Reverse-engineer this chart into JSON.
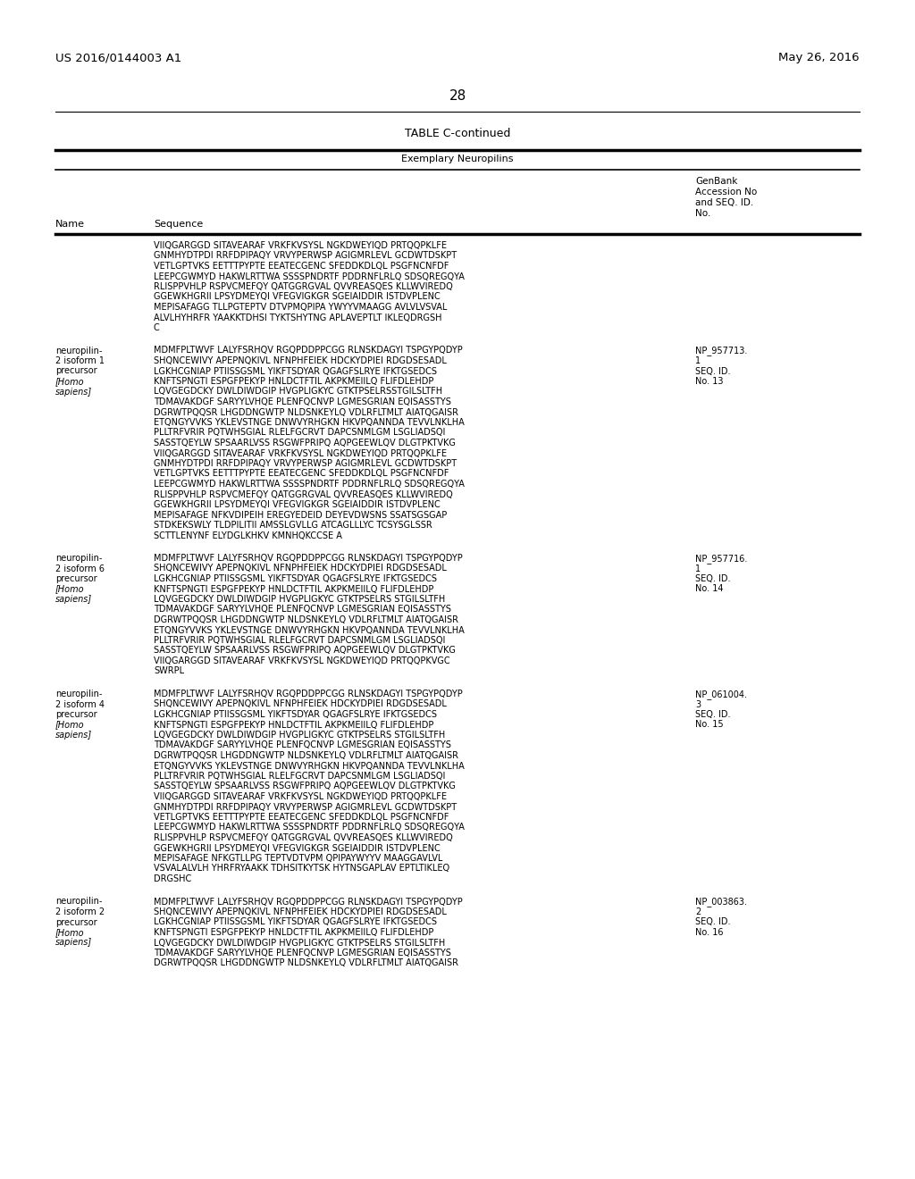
{
  "page_number": "28",
  "top_left": "US 2016/0144003 A1",
  "top_right": "May 26, 2016",
  "table_title": "TABLE C-continued",
  "table_subtitle": "Exemplary Neuropilins",
  "background_color": "#ffffff",
  "content": [
    {
      "name_lines": [],
      "accession_lines": [],
      "sequence_lines": [
        "VIIQGARGGD SITAVEARAF VRKFKVSYSL NGKDWEYIQD PRTQQPKLFE",
        "GNMHYDTPDI RRFDPIPAQY VRVYPERWSP AGIGMRLEVL GCDWTDSKPT",
        "VETLGPTVKS EETTTPYPTE EEATECGENC SFEDDKDLQL PSGFNCNFDF",
        "LEEPCGWMYD HAKWLRTTWA SSSSPNDRTF PDDRNFLRLQ SDSQREGQYA",
        "RLISPPVHLP RSPVCMEFQY QATGGRGVAL QVVREASQES KLLWVIREDQ",
        "GGEWKHGRII LPSYDMEYQI VFEGVIGKGR SGEIAIDDIR ISTDVPLENC",
        "MEPISAFAGG TLLPGTEPTV DTVPMQPIPA YWYYVMAAGG AVLVLVSVAL",
        "ALVLHYHRFR YAAKKTDHSI TYKTSHYTNG APLAVEPTLT IKLEQDRGSH",
        "C"
      ]
    },
    {
      "name_lines": [
        "neuropilin-",
        "2 isoform 1",
        "precursor",
        "[Homo",
        "sapiens]"
      ],
      "italic_indices": [
        3,
        4
      ],
      "accession_lines": [
        "NP_957713.",
        "1",
        "SEQ. ID.",
        "No. 13"
      ],
      "sequence_lines": [
        "MDMFPLTWVF LALYFSRHQV RGQPDDPPCGG RLNSKDAGYI TSPGYPQDYP",
        "SHQNCEWIVY APEPNQKIVL NFNPHFEIEK HDCKYDPIEI RDGDSESADL",
        "LGKHCGNIAP PTIISSGSML YIKFTSDYAR QGAGFSLRYE IFKTGSEDCS",
        "KNFTSPNGTI ESPGFPEKYP HNLDCTFTIL AKPKMEIILQ FLIFDLEHDP",
        "LQVGEGDCKY DWLDIWDGIP HVGPLIGKYC GTKTPSELRSSTGILSLTFH",
        "TDMAVAKDGF SARYYLVHQE PLENFQCNVP LGMESGRIAN EQISASSTYS",
        "DGRWTPQQSR LHGDDNGWTP NLDSNKEYLQ VDLRFLTMLT AIATQGAISR",
        "ETQNGYVVKS YKLEVSTNGE DNWVYRHGKN HKVPQANNDA TEVVLNKLHA",
        "PLLTRFVRIR PQTWHSGIAL RLELFGCRVT DAPCSNMLGM LSGLIADSQI",
        "SASSTQEYLW SPSAARLVSS RSGWFPRIPQ AQPGEEWLQV DLGTPKTVKG",
        "VIIQGARGGD SITAVEARAF VRKFKVSYSL NGKDWEYIQD PRTQQPKLFE",
        "GNMHYDTPDI RRFDPIPAQY VRVYPERWSP AGIGMRLEVL GCDWTDSKPT",
        "VETLGPTVKS EETTTPYPTE EEATECGENC SFEDDKDLQL PSGFNCNFDF",
        "LEEPCGWMYD HAKWLRTTWA SSSSPNDRTF PDDRNFLRLQ SDSQREGQYA",
        "RLISPPVHLP RSPVCMEFQY QATGGRGVAL QVVREASQES KLLWVIREDQ",
        "GGEWKHGRII LPSYDMEYQI VFEGVIGKGR SGEIAIDDIR ISTDVPLENC",
        "MEPISAFAGE NFKVDIPEIH EREGYEDEID DEYEVDWSNS SSATSGSGAP",
        "STDKEKSWLY TLDPILITII AMSSLGVLLG ATCAGLLLYC TCSYSGLSSR",
        "SCTTLENYNF ELYDGLKHKV KMNHQKCCSE A"
      ]
    },
    {
      "name_lines": [
        "neuropilin-",
        "2 isoform 6",
        "precursor",
        "[Homo",
        "sapiens]"
      ],
      "italic_indices": [
        3,
        4
      ],
      "accession_lines": [
        "NP_957716.",
        "1",
        "SEQ. ID.",
        "No. 14"
      ],
      "sequence_lines": [
        "MDMFPLTWVF LALYFSRHQV RGQPDDPPCGG RLNSKDAGYI TSPGYPQDYP",
        "SHQNCEWIVY APEPNQKIVL NFNPHFEIEK HDCKYDPIEI RDGDSESADL",
        "LGKHCGNIAP PTIISSGSML YIKFTSDYAR QGAGFSLRYE IFKTGSEDCS",
        "KNFTSPNGTI ESPGFPEKYP HNLDCTFTIL AKPKMEIILQ FLIFDLEHDP",
        "LQVGEGDCKY DWLDIWDGIP HVGPLIGKYC GTKTPSELRS STGILSLTFH",
        "TDMAVAKDGF SARYYLVHQE PLENFQCNVP LGMESGRIAN EQISASSTYS",
        "DGRWTPQQSR LHGDDNGWTP NLDSNKEYLQ VDLRFLTMLT AIATQGAISR",
        "ETQNGYVVKS YKLEVSTNGE DNWVYRHGKN HKVPQANNDA TEVVLNKLHA",
        "PLLTRFVRIR PQTWHSGIAL RLELFGCRVT DAPCSNMLGM LSGLIADSQI",
        "SASSTQEYLW SPSAARLVSS RSGWFPRIPQ AQPGEEWLQV DLGTPKTVKG",
        "VIIQGARGGD SITAVEARAF VRKFKVSYSL NGKDWEYIQD PRTQQPKVGC",
        "SWRPL"
      ]
    },
    {
      "name_lines": [
        "neuropilin-",
        "2 isoform 4",
        "precursor",
        "[Homo",
        "sapiens]"
      ],
      "italic_indices": [
        3,
        4
      ],
      "accession_lines": [
        "NP_061004.",
        "3",
        "SEQ. ID.",
        "No. 15"
      ],
      "sequence_lines": [
        "MDMFPLTWVF LALYFSRHQV RGQPDDPPCGG RLNSKDAGYI TSPGYPQDYP",
        "SHQNCEWIVY APEPNQKIVL NFNPHFEIEK HDCKYDPIEI RDGDSESADL",
        "LGKHCGNIAP PTIISSGSML YIKFTSDYAR QGAGFSLRYE IFKTGSEDCS",
        "KNFTSPNGTI ESPGFPEKYP HNLDCTFTIL AKPKMEIILQ FLIFDLEHDP",
        "LQVGEGDCKY DWLDIWDGIP HVGPLIGKYC GTKTPSELRS STGILSLTFH",
        "TDMAVAKDGF SARYYLVHQE PLENFQCNVP LGMESGRIAN EQISASSTYS",
        "DGRWTPQQSR LHGDDNGWTP NLDSNKEYLQ VDLRFLTMLT AIATQGAISR",
        "ETQNGYVVKS YKLEVSTNGE DNWVYRHGKN HKVPQANNDA TEVVLNKLHA",
        "PLLTRFVRIR PQTWHSGIAL RLELFGCRVT DAPCSNMLGM LSGLIADSQI",
        "SASSTQEYLW SPSAARLVSS RSGWFPRIPQ AQPGEEWLQV DLGTPKTVKG",
        "VIIQGARGGD SITAVEARAF VRKFKVSYSL NGKDWEYIQD PRTQQPKLFE",
        "GNMHYDTPDI RRFDPIPAQY VRVYPERWSP AGIGMRLEVL GCDWTDSKPT",
        "VETLGPTVKS EETTTPYPTE EEATECGENC SFEDDKDLQL PSGFNCNFDF",
        "LEEPCGWMYD HAKWLRTTWA SSSSPNDRTF PDDRNFLRLQ SDSQREGQYA",
        "RLISPPVHLP RSPVCMEFQY QATGGRGVAL QVVREASQES KLLWVIREDQ",
        "GGEWKHGRII LPSYDMEYQI VFEGVIGKGR SGEIAIDDIR ISTDVPLENC",
        "MEPISAFAGE NFKGTLLPG TEPTVDTVPM QPIPAYWYYV MAAGGAVLVL",
        "VSVALALVLH YHRFRYAAKK TDHSITKYTSK HYTNSGAPLAV EPTLTIKLEQ",
        "DRGSHC"
      ]
    },
    {
      "name_lines": [
        "neuropilin-",
        "2 isoform 2",
        "precursor",
        "[Homo",
        "sapiens]"
      ],
      "italic_indices": [
        3,
        4
      ],
      "accession_lines": [
        "NP_003863.",
        "2",
        "SEQ. ID.",
        "No. 16"
      ],
      "sequence_lines": [
        "MDMFPLTWVF LALYFSRHQV RGQPDDPPCGG RLNSKDAGYI TSPGYPQDYP",
        "SHQNCEWIVY APEPNQKIVL NFNPHFEIEK HDCKYDPIEI RDGDSESADL",
        "LGKHCGNIAP PTIISSGSML YIKFTSDYAR QGAGFSLRYE IFKTGSEDCS",
        "KNFTSPNGTI ESPGFPEKYP HNLDCTFTIL AKPKMEIILQ FLIFDLEHDP",
        "LQVGEGDCKY DWLDIWDGIP HVGPLIGKYC GTKTPSELRS STGILSLTFH",
        "TDMAVAKDGF SARYYLVHQE PLENFQCNVP LGMESGRIAN EQISASSTYS",
        "DGRWTPQQSR LHGDDNGWTP NLDSNKEYLQ VDLRFLTMLT AIATQGAISR"
      ]
    }
  ]
}
